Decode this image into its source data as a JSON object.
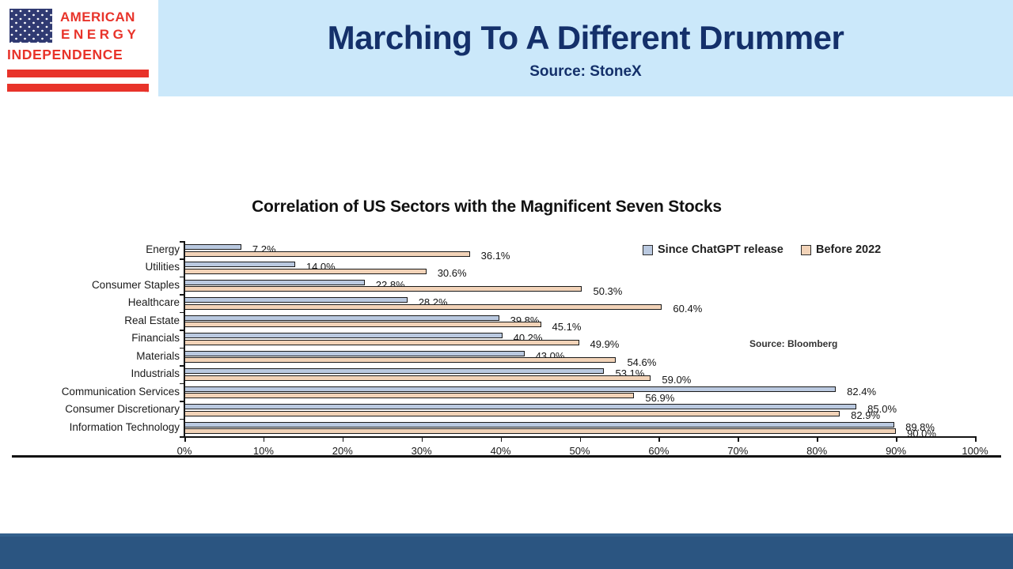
{
  "slide": {
    "title": "Marching To A Different Drummer",
    "subtitle": "Source: StoneX",
    "colors": {
      "header_bg": "#cbe8fa",
      "title_text": "#14306a",
      "footer": "#2b5581",
      "logo_red": "#e8332a",
      "flag_navy": "#303a72"
    }
  },
  "logo": {
    "line1": "AMERICAN",
    "line2": "ENERGY",
    "line3": "INDEPENDENCE",
    "tm": "™"
  },
  "chart_data": {
    "type": "bar",
    "orientation": "horizontal",
    "title": "Correlation of US Sectors with the Magnificent Seven Stocks",
    "annotation": "Source: Bloomberg",
    "categories": [
      "Energy",
      "Utilities",
      "Consumer Staples",
      "Healthcare",
      "Real Estate",
      "Financials",
      "Materials",
      "Industrials",
      "Communication Services",
      "Consumer Discretionary",
      "Information Technology"
    ],
    "series": [
      {
        "name": "Since ChatGPT release",
        "color": "#bac9e0",
        "values": [
          7.2,
          14.0,
          22.8,
          28.2,
          39.8,
          40.2,
          43.0,
          53.1,
          82.4,
          85.0,
          89.8
        ]
      },
      {
        "name": "Before 2022",
        "color": "#f2d3b8",
        "values": [
          36.1,
          30.6,
          50.3,
          60.4,
          45.1,
          49.9,
          54.6,
          59.0,
          56.9,
          82.9,
          90.0
        ]
      }
    ],
    "value_format": "{value}%",
    "xlim": [
      0,
      100
    ],
    "x_ticks": [
      "0%",
      "10%",
      "20%",
      "30%",
      "40%",
      "50%",
      "60%",
      "70%",
      "80%",
      "90%",
      "100%"
    ],
    "legend_position": "top-right-inside",
    "grid": false
  }
}
